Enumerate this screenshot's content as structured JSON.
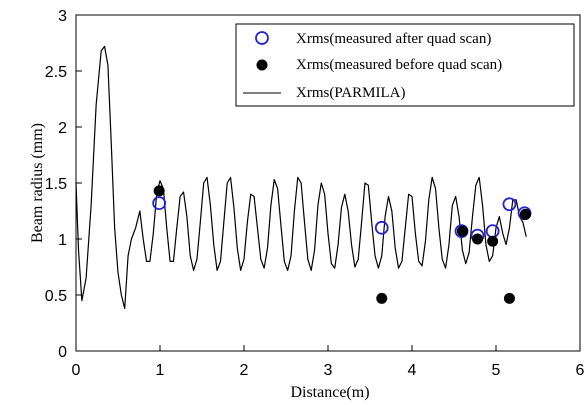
{
  "chart_data": {
    "type": "line",
    "xlabel": "Distance(m)",
    "ylabel": "Beam radius  (mm)",
    "xlim": [
      0,
      6
    ],
    "ylim": [
      0,
      3
    ],
    "x_ticks": [
      "0",
      "1",
      "2",
      "3",
      "4",
      "5",
      "6"
    ],
    "y_ticks": [
      "0",
      "0.5",
      "1",
      "1.5",
      "2",
      "2.5",
      "3"
    ],
    "grid": false,
    "legend_position": "top-right",
    "series": [
      {
        "name": "Xrms(measured after quad scan)",
        "kind": "scatter",
        "marker": "open-circle",
        "color": "#2323d8",
        "x": [
          0.99,
          3.64,
          4.59,
          4.78,
          4.96,
          5.16,
          5.34
        ],
        "y": [
          1.32,
          1.1,
          1.07,
          1.03,
          1.07,
          1.31,
          1.23
        ]
      },
      {
        "name": "Xrms(measured before quad scan)",
        "kind": "scatter",
        "marker": "filled-circle",
        "color": "#000000",
        "x": [
          0.99,
          3.64,
          4.6,
          4.78,
          4.96,
          5.16,
          5.35,
          5.35
        ],
        "y": [
          1.43,
          0.47,
          1.07,
          1.0,
          0.98,
          0.47,
          1.22,
          1.22
        ]
      },
      {
        "name": "Xrms(PARMILA)",
        "kind": "line",
        "color": "#000000",
        "x": [
          0,
          0.03,
          0.07,
          0.12,
          0.18,
          0.24,
          0.3,
          0.34,
          0.38,
          0.42,
          0.46,
          0.5,
          0.54,
          0.58,
          0.62,
          0.66,
          0.71,
          0.76,
          0.8,
          0.84,
          0.88,
          0.92,
          0.96,
          1.0,
          1.04,
          1.08,
          1.12,
          1.16,
          1.2,
          1.24,
          1.28,
          1.32,
          1.36,
          1.4,
          1.44,
          1.48,
          1.52,
          1.56,
          1.6,
          1.64,
          1.68,
          1.72,
          1.76,
          1.8,
          1.84,
          1.88,
          1.92,
          1.96,
          2.0,
          2.04,
          2.08,
          2.12,
          2.16,
          2.2,
          2.24,
          2.28,
          2.32,
          2.36,
          2.4,
          2.44,
          2.48,
          2.52,
          2.56,
          2.6,
          2.64,
          2.68,
          2.72,
          2.76,
          2.8,
          2.84,
          2.88,
          2.92,
          2.96,
          3.0,
          3.04,
          3.08,
          3.12,
          3.16,
          3.2,
          3.24,
          3.28,
          3.32,
          3.36,
          3.4,
          3.44,
          3.48,
          3.52,
          3.56,
          3.6,
          3.64,
          3.68,
          3.72,
          3.76,
          3.8,
          3.84,
          3.88,
          3.92,
          3.96,
          4.0,
          4.04,
          4.08,
          4.12,
          4.16,
          4.2,
          4.24,
          4.28,
          4.32,
          4.36,
          4.4,
          4.44,
          4.48,
          4.52,
          4.56,
          4.6,
          4.64,
          4.68,
          4.72,
          4.76,
          4.8,
          4.84,
          4.88,
          4.92,
          4.96,
          5.0,
          5.04,
          5.08,
          5.12,
          5.16,
          5.2,
          5.24,
          5.28,
          5.32,
          5.36
        ],
        "y": [
          1.5,
          0.9,
          0.45,
          0.65,
          1.3,
          2.2,
          2.68,
          2.72,
          2.55,
          1.85,
          1.1,
          0.7,
          0.5,
          0.38,
          0.85,
          1.0,
          1.1,
          1.25,
          1.0,
          0.8,
          0.8,
          1.05,
          1.4,
          1.52,
          1.45,
          1.1,
          0.8,
          0.8,
          1.1,
          1.38,
          1.42,
          1.2,
          0.85,
          0.72,
          0.82,
          1.15,
          1.5,
          1.55,
          1.3,
          0.95,
          0.72,
          0.8,
          1.15,
          1.5,
          1.55,
          1.28,
          0.92,
          0.72,
          0.82,
          1.15,
          1.4,
          1.38,
          1.1,
          0.82,
          0.74,
          0.92,
          1.3,
          1.53,
          1.45,
          1.12,
          0.8,
          0.72,
          0.85,
          1.25,
          1.55,
          1.5,
          1.15,
          0.82,
          0.72,
          0.9,
          1.3,
          1.5,
          1.4,
          1.05,
          0.78,
          0.74,
          0.95,
          1.28,
          1.4,
          1.25,
          0.95,
          0.75,
          0.82,
          1.15,
          1.5,
          1.48,
          1.15,
          0.85,
          0.74,
          0.85,
          1.2,
          1.38,
          1.25,
          0.92,
          0.74,
          0.8,
          1.1,
          1.4,
          1.38,
          1.05,
          0.8,
          0.76,
          0.98,
          1.35,
          1.55,
          1.45,
          1.1,
          0.82,
          0.74,
          0.95,
          1.3,
          1.38,
          1.2,
          0.9,
          0.78,
          0.88,
          1.2,
          1.48,
          1.55,
          1.3,
          0.95,
          0.8,
          0.85,
          1.1,
          1.2,
          1.05,
          0.95,
          1.1,
          1.35,
          1.35,
          1.2,
          1.15,
          1.02
        ]
      }
    ]
  }
}
